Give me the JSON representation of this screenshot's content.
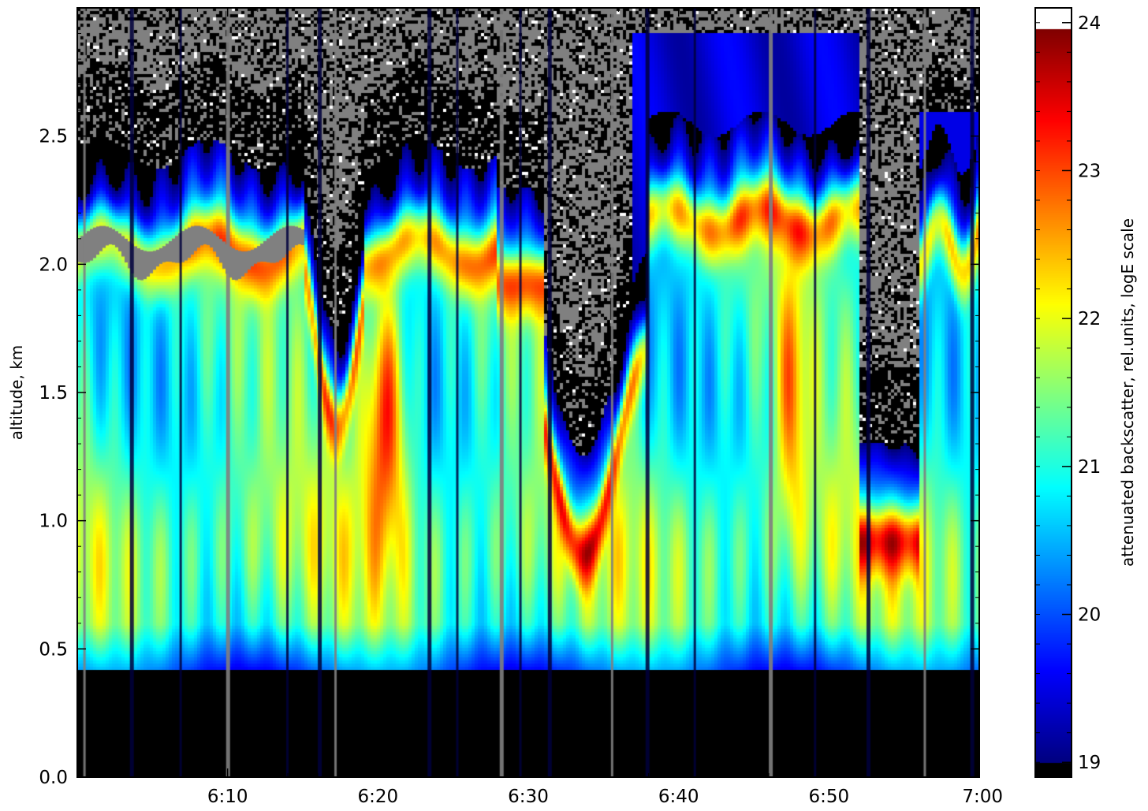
{
  "chart_data": {
    "type": "heatmap",
    "title": "",
    "xlabel": "",
    "ylabel": "altitude, km",
    "x_ticks": [
      "6:10",
      "6:20",
      "6:30",
      "6:40",
      "6:50",
      "7:00"
    ],
    "x_tick_minutes": [
      10,
      20,
      30,
      40,
      50,
      60
    ],
    "xlim_minutes": [
      0,
      60
    ],
    "y_ticks": [
      "0.0",
      "0.5",
      "1.0",
      "1.5",
      "2.0",
      "2.5"
    ],
    "y_tick_values": [
      0.0,
      0.5,
      1.0,
      1.5,
      2.0,
      2.5
    ],
    "ylim": [
      0,
      3.0
    ],
    "colorbar": {
      "label": "attenuated backscatter, rel.units, logE scale",
      "ticks": [
        "19",
        "20",
        "21",
        "22",
        "23",
        "24"
      ],
      "tick_values": [
        19,
        20,
        21,
        22,
        23,
        24
      ],
      "range": [
        18.9,
        24.1
      ],
      "colormap": "jet",
      "under_color": "#000000",
      "over_color": "#ffffff"
    },
    "grid": false,
    "features": {
      "surface_blind_zone_top_km": 0.42,
      "main_layer_top_km": 2.2,
      "noise_color": "#808080",
      "contour_color": "#ffffff"
    }
  }
}
